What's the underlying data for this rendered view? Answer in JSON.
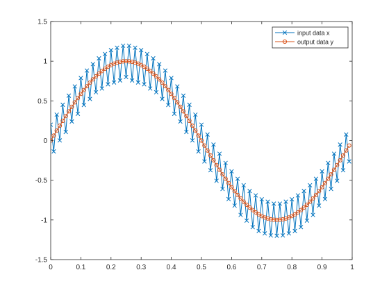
{
  "chart_data": {
    "type": "line",
    "xlim": [
      0,
      1
    ],
    "ylim": [
      -1.5,
      1.5
    ],
    "x_ticks": [
      "0",
      "0.1",
      "0.2",
      "0.3",
      "0.4",
      "0.5",
      "0.6",
      "0.7",
      "0.8",
      "0.9",
      "1"
    ],
    "y_ticks": [
      "1.5",
      "1",
      "0.5",
      "0",
      "-0.5",
      "-1",
      "-1.5"
    ],
    "grid": false,
    "legend_placement": "top-right",
    "series": [
      {
        "name": "input data x",
        "color": "#0072BD",
        "marker": "x",
        "x": [
          0.0,
          0.01,
          0.02,
          0.03,
          0.04,
          0.05,
          0.06,
          0.07,
          0.08,
          0.09,
          0.1,
          0.11,
          0.12,
          0.13,
          0.14,
          0.15,
          0.16,
          0.17,
          0.18,
          0.19,
          0.2,
          0.21,
          0.22,
          0.23,
          0.24,
          0.25,
          0.26,
          0.27,
          0.28,
          0.29,
          0.3,
          0.31,
          0.32,
          0.33,
          0.34,
          0.35,
          0.36,
          0.37,
          0.38,
          0.39,
          0.4,
          0.41,
          0.42,
          0.43,
          0.44,
          0.45,
          0.46,
          0.47,
          0.48,
          0.49,
          0.5,
          0.51,
          0.52,
          0.53,
          0.54,
          0.55,
          0.56,
          0.57,
          0.58,
          0.59,
          0.6,
          0.61,
          0.62,
          0.63,
          0.64,
          0.65,
          0.66,
          0.67,
          0.68,
          0.69,
          0.7,
          0.71,
          0.72,
          0.73,
          0.74,
          0.75,
          0.76,
          0.77,
          0.78,
          0.79,
          0.8,
          0.81,
          0.82,
          0.83,
          0.84,
          0.85,
          0.86,
          0.87,
          0.88,
          0.89,
          0.9,
          0.91,
          0.92,
          0.93,
          0.94,
          0.95,
          0.96,
          0.97,
          0.98,
          0.99
        ],
        "values": [
          0.2,
          -0.137,
          0.326,
          0.002,
          0.451,
          0.109,
          0.566,
          0.24,
          0.682,
          0.337,
          0.788,
          0.448,
          0.882,
          0.524,
          0.963,
          0.609,
          1.036,
          0.656,
          1.091,
          0.709,
          1.14,
          0.732,
          1.17,
          0.757,
          1.195,
          0.8,
          1.195,
          0.757,
          1.17,
          0.732,
          1.14,
          0.709,
          1.091,
          0.656,
          1.036,
          0.609,
          0.963,
          0.524,
          0.882,
          0.448,
          0.788,
          0.337,
          0.682,
          0.24,
          0.566,
          0.109,
          0.451,
          0.002,
          0.326,
          -0.137,
          0.2,
          -0.263,
          0.076,
          -0.374,
          -0.051,
          -0.507,
          -0.166,
          -0.61,
          -0.282,
          -0.737,
          -0.388,
          -0.82,
          -0.482,
          -0.937,
          -0.563,
          -1.009,
          -0.636,
          -1.091,
          -0.691,
          -1.14,
          -0.74,
          -1.17,
          -0.77,
          -1.195,
          -0.795,
          -1.2,
          -0.795,
          -1.195,
          -0.77,
          -1.17,
          -0.74,
          -1.14,
          -0.691,
          -1.091,
          -0.636,
          -1.009,
          -0.563,
          -0.937,
          -0.482,
          -0.82,
          -0.388,
          -0.737,
          -0.282,
          -0.61,
          -0.166,
          -0.507,
          -0.051,
          -0.374,
          0.076,
          -0.263
        ]
      },
      {
        "name": "output data y",
        "color": "#D95319",
        "marker": "o",
        "x": [
          0.0,
          0.01,
          0.02,
          0.03,
          0.04,
          0.05,
          0.06,
          0.07,
          0.08,
          0.09,
          0.1,
          0.11,
          0.12,
          0.13,
          0.14,
          0.15,
          0.16,
          0.17,
          0.18,
          0.19,
          0.2,
          0.21,
          0.22,
          0.23,
          0.24,
          0.25,
          0.26,
          0.27,
          0.28,
          0.29,
          0.3,
          0.31,
          0.32,
          0.33,
          0.34,
          0.35,
          0.36,
          0.37,
          0.38,
          0.39,
          0.4,
          0.41,
          0.42,
          0.43,
          0.44,
          0.45,
          0.46,
          0.47,
          0.48,
          0.49,
          0.5,
          0.51,
          0.52,
          0.53,
          0.54,
          0.55,
          0.56,
          0.57,
          0.58,
          0.59,
          0.6,
          0.61,
          0.62,
          0.63,
          0.64,
          0.65,
          0.66,
          0.67,
          0.68,
          0.69,
          0.7,
          0.71,
          0.72,
          0.73,
          0.74,
          0.75,
          0.76,
          0.77,
          0.78,
          0.79,
          0.8,
          0.81,
          0.82,
          0.83,
          0.84,
          0.85,
          0.86,
          0.87,
          0.88,
          0.89,
          0.9,
          0.91,
          0.92,
          0.93,
          0.94,
          0.95,
          0.96,
          0.97,
          0.98,
          0.99
        ],
        "values": [
          0.0,
          0.063,
          0.125,
          0.187,
          0.249,
          0.309,
          0.368,
          0.426,
          0.482,
          0.536,
          0.588,
          0.637,
          0.685,
          0.729,
          0.771,
          0.809,
          0.844,
          0.876,
          0.905,
          0.93,
          0.951,
          0.969,
          0.982,
          0.992,
          0.998,
          1.0,
          0.998,
          0.992,
          0.982,
          0.969,
          0.951,
          0.93,
          0.905,
          0.876,
          0.844,
          0.809,
          0.771,
          0.729,
          0.685,
          0.637,
          0.588,
          0.536,
          0.482,
          0.426,
          0.368,
          0.309,
          0.249,
          0.187,
          0.125,
          0.063,
          0.0,
          -0.063,
          -0.125,
          -0.187,
          -0.249,
          -0.309,
          -0.368,
          -0.426,
          -0.482,
          -0.536,
          -0.588,
          -0.637,
          -0.685,
          -0.729,
          -0.771,
          -0.809,
          -0.844,
          -0.876,
          -0.905,
          -0.93,
          -0.951,
          -0.969,
          -0.982,
          -0.992,
          -0.998,
          -1.0,
          -0.998,
          -0.992,
          -0.982,
          -0.969,
          -0.951,
          -0.93,
          -0.905,
          -0.876,
          -0.844,
          -0.809,
          -0.771,
          -0.729,
          -0.685,
          -0.637,
          -0.588,
          -0.536,
          -0.482,
          -0.426,
          -0.368,
          -0.309,
          -0.249,
          -0.187,
          -0.125,
          -0.063
        ]
      }
    ]
  }
}
